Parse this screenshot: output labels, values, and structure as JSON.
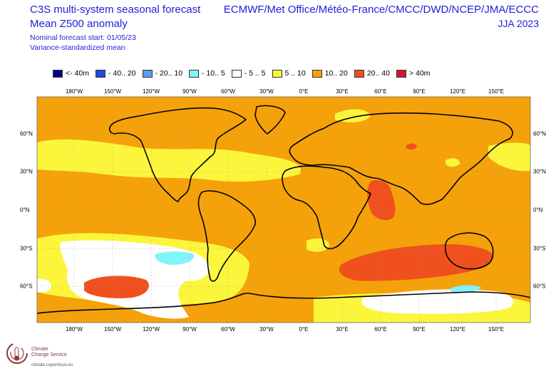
{
  "header": {
    "title_line1": "C3S multi-system seasonal forecast",
    "title_line2": "Mean Z500 anomaly",
    "subtitle_line1": "Nominal forecast start: 01/05/23",
    "subtitle_line2": "Variance-standardized mean",
    "centres": "ECMWF/Met Office/Météo-France/CMCC/DWD/NCEP/JMA/ECCC",
    "season": "JJA 2023"
  },
  "legend": [
    {
      "label": "<- 40m",
      "color": "#00008b"
    },
    {
      "label": "- 40.. 20",
      "color": "#1f4ddc"
    },
    {
      "label": "- 20.. 10",
      "color": "#5aa0f0"
    },
    {
      "label": "- 10.. 5",
      "color": "#80f4f8"
    },
    {
      "label": "- 5 .. 5",
      "color": "#ffffff"
    },
    {
      "label": "5 .. 10",
      "color": "#fbf63c"
    },
    {
      "label": "10.. 20",
      "color": "#f5a20a"
    },
    {
      "label": "20.. 40",
      "color": "#f0501e"
    },
    {
      "label": ">  40m",
      "color": "#d01530"
    }
  ],
  "axes": {
    "longitudes": [
      "180°W",
      "150°W",
      "120°W",
      "90°W",
      "60°W",
      "30°W",
      "0°E",
      "30°E",
      "60°E",
      "90°E",
      "120°E",
      "150°E"
    ],
    "latitudes": [
      "60°N",
      "30°N",
      "0°N",
      "30°S",
      "60°S"
    ]
  },
  "map": {
    "background_category": "10.. 20"
  },
  "branding": {
    "logo_name_line1": "Climate",
    "logo_name_line2": "Change Service",
    "logo_url": "climate.copernicus.eu"
  }
}
